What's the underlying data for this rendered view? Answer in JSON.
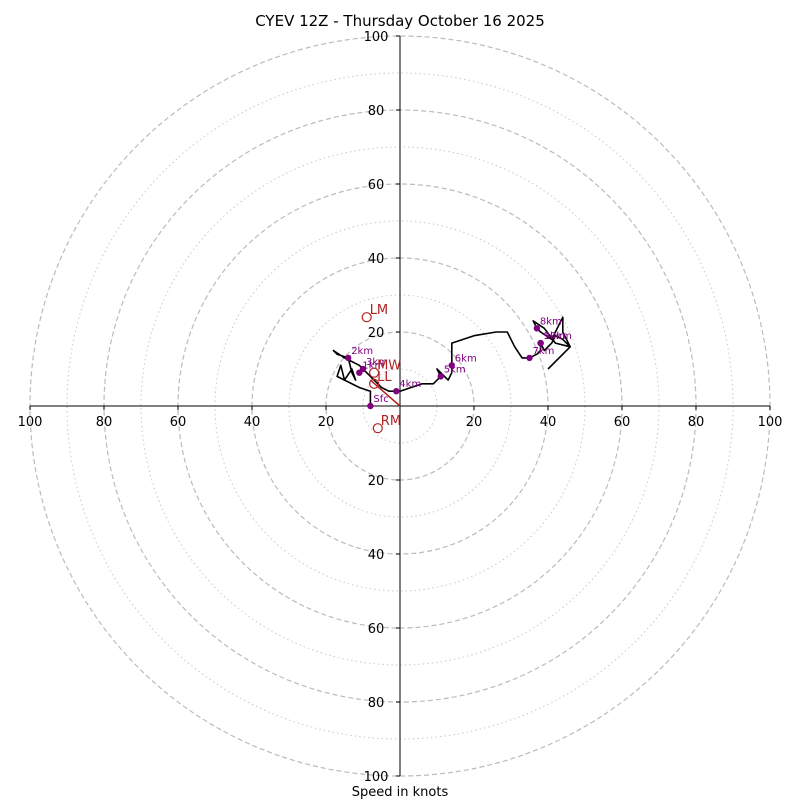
{
  "chart_data": {
    "type": "hodograph",
    "title": "CYEV 12Z - Thursday October 16 2025",
    "xlabel": "Speed in knots",
    "units": "knots",
    "max_ring": 100,
    "dashed_rings": [
      20,
      40,
      60,
      80,
      100
    ],
    "dotted_rings": [
      10,
      30,
      50,
      70,
      90
    ],
    "tick_labels": [
      "20",
      "40",
      "60",
      "80",
      "100"
    ],
    "colors": {
      "trace": "#000000",
      "height_marker": "#800080",
      "storm_motion": "#b22222",
      "rings": "#bbbbbb",
      "axes": "#000000"
    },
    "trace": [
      [
        -8,
        0
      ],
      [
        -8,
        4
      ],
      [
        -11,
        5
      ],
      [
        -15,
        7
      ],
      [
        -16,
        11
      ],
      [
        -17,
        8
      ],
      [
        -15,
        7
      ],
      [
        -13,
        10
      ],
      [
        -12,
        7
      ],
      [
        -13,
        9
      ],
      [
        -14,
        13
      ],
      [
        -17,
        14
      ],
      [
        -18,
        15
      ],
      [
        -15,
        13
      ],
      [
        -11,
        11
      ],
      [
        -9,
        9
      ],
      [
        -6,
        6
      ],
      [
        -5,
        5
      ],
      [
        -3,
        4
      ],
      [
        -1,
        4
      ],
      [
        0,
        4
      ],
      [
        3,
        5
      ],
      [
        6,
        6
      ],
      [
        9,
        6
      ],
      [
        11,
        8
      ],
      [
        10,
        10
      ],
      [
        13,
        7
      ],
      [
        14,
        9
      ],
      [
        14,
        11
      ],
      [
        14,
        14
      ],
      [
        14,
        17
      ],
      [
        20,
        19
      ],
      [
        26,
        20
      ],
      [
        29,
        20
      ],
      [
        31,
        16
      ],
      [
        33,
        13
      ],
      [
        35,
        13
      ],
      [
        37,
        14
      ],
      [
        38,
        15
      ],
      [
        38,
        17
      ],
      [
        39,
        15
      ],
      [
        41,
        17
      ],
      [
        42,
        19
      ],
      [
        44,
        18
      ],
      [
        46,
        16
      ],
      [
        44,
        20
      ],
      [
        44,
        24
      ],
      [
        42,
        20
      ],
      [
        41,
        18
      ],
      [
        38,
        20
      ],
      [
        37,
        21
      ],
      [
        36,
        23
      ],
      [
        39,
        21
      ],
      [
        42,
        17
      ],
      [
        46,
        16
      ],
      [
        40,
        10
      ]
    ],
    "height_markers": [
      {
        "label": "Sfc",
        "u": -8,
        "v": 0
      },
      {
        "label": "1km",
        "u": -11,
        "v": 9
      },
      {
        "label": "2km",
        "u": -14,
        "v": 13
      },
      {
        "label": "3km",
        "u": -10,
        "v": 10
      },
      {
        "label": "4km",
        "u": -1,
        "v": 4
      },
      {
        "label": "5km",
        "u": 11,
        "v": 8
      },
      {
        "label": "6km",
        "u": 14,
        "v": 11
      },
      {
        "label": "7km",
        "u": 35,
        "v": 13
      },
      {
        "label": "8km",
        "u": 37,
        "v": 21
      },
      {
        "label": "9km",
        "u": 38,
        "v": 17
      },
      {
        "label": "10km",
        "u": 38,
        "v": 17
      }
    ],
    "storm_motions": [
      {
        "label": "LM",
        "u": -9,
        "v": 24
      },
      {
        "label": "RM",
        "u": -6,
        "v": -6
      },
      {
        "label": "MW",
        "u": -7,
        "v": 9
      },
      {
        "label": "LL",
        "u": -7,
        "v": 6
      }
    ],
    "shear_vector": {
      "from": {
        "u": -8,
        "v": 7
      },
      "to": {
        "u": 0,
        "v": 0
      }
    }
  }
}
